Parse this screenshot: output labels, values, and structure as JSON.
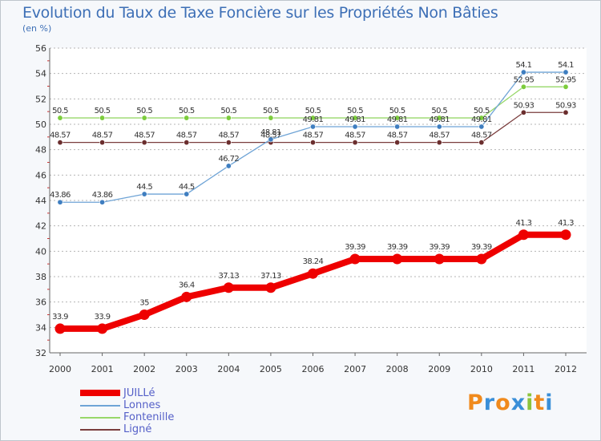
{
  "title": "Evolution du Taux de Taxe Foncière sur les Propriétés Non Bâties",
  "unit": "(en %)",
  "logo": "Proxiti",
  "colors": {
    "title": "#3d6fb6",
    "legend_text": "#5560c8",
    "grid": "#b5b5b5"
  },
  "chart_data": {
    "type": "line",
    "title": "Evolution du Taux de Taxe Foncière sur les Propriétés Non Bâties",
    "ylabel": "(en %)",
    "xlabel": "",
    "x": [
      "2000",
      "2001",
      "2002",
      "2003",
      "2004",
      "2005",
      "2006",
      "2007",
      "2008",
      "2009",
      "2010",
      "2011",
      "2012"
    ],
    "ylim": [
      32,
      56
    ],
    "yticks": [
      "32",
      "34",
      "36",
      "38",
      "40",
      "42",
      "44",
      "46",
      "48",
      "50",
      "52",
      "54",
      "56"
    ],
    "grid": "horizontal dashed",
    "legend_position": "bottom-left",
    "series": [
      {
        "name": "JUILLé",
        "color": "#ee0000",
        "weight": "thick",
        "values": [
          33.9,
          33.9,
          35,
          36.4,
          37.13,
          37.13,
          38.24,
          39.39,
          39.39,
          39.39,
          39.39,
          41.3,
          41.3
        ],
        "labels": [
          "33.9",
          "33.9",
          "35",
          "36.4",
          "37.13",
          "37.13",
          "38.24",
          "39.39",
          "39.39",
          "39.39",
          "39.39",
          "41.3",
          "41.3"
        ]
      },
      {
        "name": "Lonnes",
        "color": "#6fa4d6",
        "marker": "#3f7ec0",
        "weight": "thin",
        "values": [
          43.86,
          43.86,
          44.5,
          44.5,
          46.72,
          48.81,
          49.81,
          49.81,
          49.81,
          49.81,
          49.81,
          54.1,
          54.1
        ],
        "labels": [
          "43.86",
          "43.86",
          "44.5",
          "44.5",
          "46.72",
          "48.81",
          "49.81",
          "49.81",
          "49.81",
          "49.81",
          "49.81",
          "54.1",
          "54.1"
        ]
      },
      {
        "name": "Fontenille",
        "color": "#98d86a",
        "marker": "#7ccc3c",
        "weight": "thin",
        "values": [
          50.5,
          50.5,
          50.5,
          50.5,
          50.5,
          50.5,
          50.5,
          50.5,
          50.5,
          50.5,
          50.5,
          52.95,
          52.95
        ],
        "labels": [
          "50.5",
          "50.5",
          "50.5",
          "50.5",
          "50.5",
          "50.5",
          "50.5",
          "50.5",
          "50.5",
          "50.5",
          "50.5",
          "52.95",
          "52.95"
        ]
      },
      {
        "name": "Ligné",
        "color": "#7a3d3d",
        "marker": "#6b2e2e",
        "weight": "thin",
        "values": [
          48.57,
          48.57,
          48.57,
          48.57,
          48.57,
          48.57,
          48.57,
          48.57,
          48.57,
          48.57,
          48.57,
          50.93,
          50.93
        ],
        "labels": [
          "48.57",
          "48.57",
          "48.57",
          "48.57",
          "48.57",
          "48.57",
          "48.57",
          "48.57",
          "48.57",
          "48.57",
          "48.57",
          "50.93",
          "50.93"
        ]
      }
    ]
  }
}
